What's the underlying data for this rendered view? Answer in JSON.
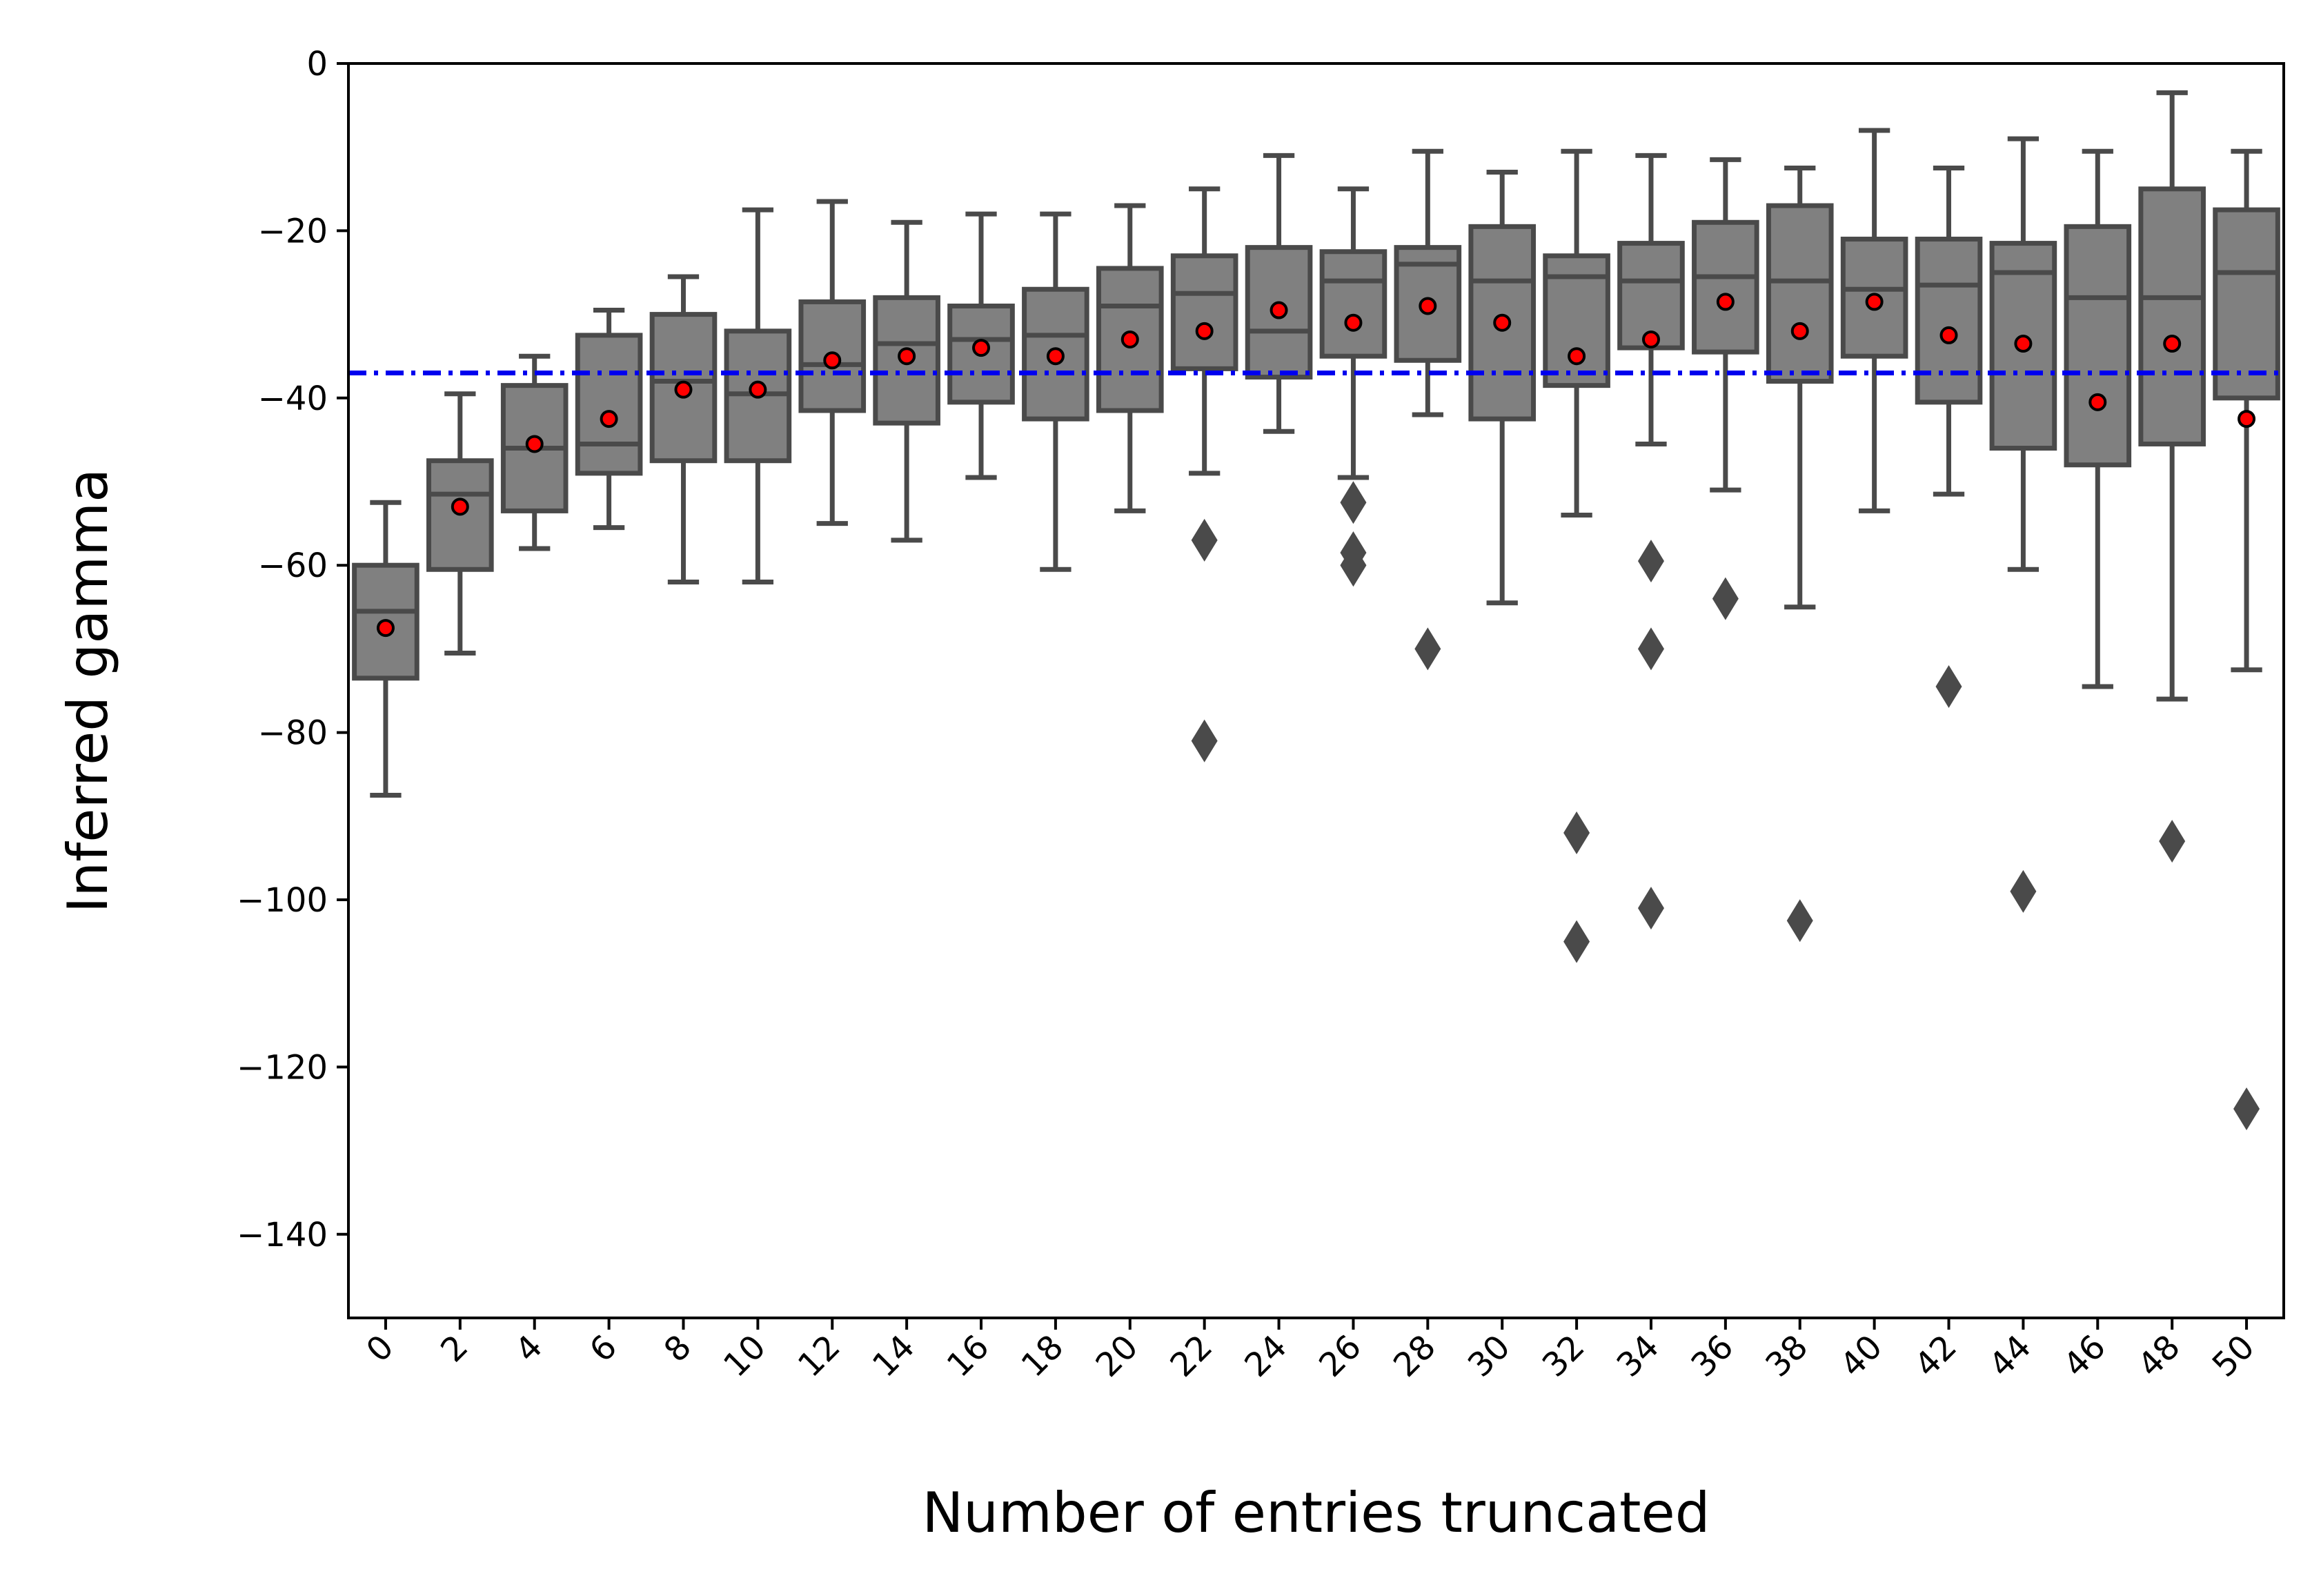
{
  "chart_data": {
    "type": "box",
    "xlabel": "Number of entries truncated",
    "ylabel": "Inferred gamma",
    "ylim": [
      -150,
      0
    ],
    "yticks": [
      0,
      -20,
      -40,
      -60,
      -80,
      -100,
      -120,
      -140
    ],
    "ytick_labels": [
      "0",
      "−20",
      "−40",
      "−60",
      "−80",
      "−100",
      "−120",
      "−140"
    ],
    "xtick_rotation_deg": 45,
    "grid": false,
    "reference_line": {
      "y": -37,
      "color": "#0000ee",
      "style": "dash-dot"
    },
    "colors": {
      "box_fill": "#808080",
      "box_edge": "#4a4a4a",
      "mean_marker": "#ff0000",
      "outlier": "#4a4a4a"
    },
    "categories": [
      "0",
      "2",
      "4",
      "6",
      "8",
      "10",
      "12",
      "14",
      "16",
      "18",
      "20",
      "22",
      "24",
      "26",
      "28",
      "30",
      "32",
      "34",
      "36",
      "38",
      "40",
      "42",
      "44",
      "46",
      "48",
      "50"
    ],
    "boxes": [
      {
        "whislo": -87.5,
        "q1": -73.5,
        "median": -65.5,
        "q3": -60.0,
        "whishi": -52.5,
        "mean": -67.5,
        "fliers": []
      },
      {
        "whislo": -70.5,
        "q1": -60.5,
        "median": -51.5,
        "q3": -47.5,
        "whishi": -39.5,
        "mean": -53.0,
        "fliers": []
      },
      {
        "whislo": -58.0,
        "q1": -53.5,
        "median": -46.0,
        "q3": -38.5,
        "whishi": -35.0,
        "mean": -45.5,
        "fliers": []
      },
      {
        "whislo": -55.5,
        "q1": -49.0,
        "median": -45.5,
        "q3": -32.5,
        "whishi": -29.5,
        "mean": -42.5,
        "fliers": []
      },
      {
        "whislo": -62.0,
        "q1": -47.5,
        "median": -38.0,
        "q3": -30.0,
        "whishi": -25.5,
        "mean": -39.0,
        "fliers": []
      },
      {
        "whislo": -62.0,
        "q1": -47.5,
        "median": -39.5,
        "q3": -32.0,
        "whishi": -17.5,
        "mean": -39.0,
        "fliers": []
      },
      {
        "whislo": -55.0,
        "q1": -41.5,
        "median": -36.0,
        "q3": -28.5,
        "whishi": -16.5,
        "mean": -35.5,
        "fliers": []
      },
      {
        "whislo": -57.0,
        "q1": -43.0,
        "median": -33.5,
        "q3": -28.0,
        "whishi": -19.0,
        "mean": -35.0,
        "fliers": []
      },
      {
        "whislo": -49.5,
        "q1": -40.5,
        "median": -33.0,
        "q3": -29.0,
        "whishi": -18.0,
        "mean": -34.0,
        "fliers": []
      },
      {
        "whislo": -60.5,
        "q1": -42.5,
        "median": -32.5,
        "q3": -27.0,
        "whishi": -18.0,
        "mean": -35.0,
        "fliers": []
      },
      {
        "whislo": -53.5,
        "q1": -41.5,
        "median": -29.0,
        "q3": -24.5,
        "whishi": -17.0,
        "mean": -33.0,
        "fliers": []
      },
      {
        "whislo": -49.0,
        "q1": -36.5,
        "median": -27.5,
        "q3": -23.0,
        "whishi": -15.0,
        "mean": -32.0,
        "fliers": [
          -57.0,
          -81.0
        ]
      },
      {
        "whislo": -44.0,
        "q1": -37.5,
        "median": -32.0,
        "q3": -22.0,
        "whishi": -11.0,
        "mean": -29.5,
        "fliers": []
      },
      {
        "whislo": -49.5,
        "q1": -35.0,
        "median": -26.0,
        "q3": -22.5,
        "whishi": -15.0,
        "mean": -31.0,
        "fliers": [
          -52.5,
          -58.5,
          -60.0
        ]
      },
      {
        "whislo": -42.0,
        "q1": -35.5,
        "median": -24.0,
        "q3": -22.0,
        "whishi": -10.5,
        "mean": -29.0,
        "fliers": [
          -70.0
        ]
      },
      {
        "whislo": -64.5,
        "q1": -42.5,
        "median": -26.0,
        "q3": -19.5,
        "whishi": -13.0,
        "mean": -31.0,
        "fliers": []
      },
      {
        "whislo": -54.0,
        "q1": -38.5,
        "median": -25.5,
        "q3": -23.0,
        "whishi": -10.5,
        "mean": -35.0,
        "fliers": [
          -92.0,
          -105.0
        ]
      },
      {
        "whislo": -45.5,
        "q1": -34.0,
        "median": -26.0,
        "q3": -21.5,
        "whishi": -11.0,
        "mean": -33.0,
        "fliers": [
          -59.5,
          -70.0,
          -101.0
        ]
      },
      {
        "whislo": -51.0,
        "q1": -34.5,
        "median": -25.5,
        "q3": -19.0,
        "whishi": -11.5,
        "mean": -28.5,
        "fliers": [
          -64.0
        ]
      },
      {
        "whislo": -65.0,
        "q1": -38.0,
        "median": -26.0,
        "q3": -17.0,
        "whishi": -12.5,
        "mean": -32.0,
        "fliers": [
          -102.5
        ]
      },
      {
        "whislo": -53.5,
        "q1": -35.0,
        "median": -27.0,
        "q3": -21.0,
        "whishi": -8.0,
        "mean": -28.5,
        "fliers": []
      },
      {
        "whislo": -51.5,
        "q1": -40.5,
        "median": -26.5,
        "q3": -21.0,
        "whishi": -12.5,
        "mean": -32.5,
        "fliers": [
          -74.5
        ]
      },
      {
        "whislo": -60.5,
        "q1": -46.0,
        "median": -25.0,
        "q3": -21.5,
        "whishi": -9.0,
        "mean": -33.5,
        "fliers": [
          -99.0
        ]
      },
      {
        "whislo": -74.5,
        "q1": -48.0,
        "median": -28.0,
        "q3": -19.5,
        "whishi": -10.5,
        "mean": -40.5,
        "fliers": []
      },
      {
        "whislo": -76.0,
        "q1": -45.5,
        "median": -28.0,
        "q3": -15.0,
        "whishi": -3.5,
        "mean": -33.5,
        "fliers": [
          -93.0
        ]
      },
      {
        "whislo": -72.5,
        "q1": -40.0,
        "median": -25.0,
        "q3": -17.5,
        "whishi": -10.5,
        "mean": -42.5,
        "fliers": [
          -125.0
        ]
      }
    ]
  }
}
